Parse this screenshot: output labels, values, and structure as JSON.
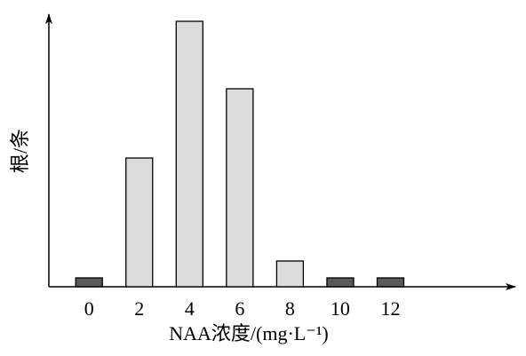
{
  "chart_data": {
    "type": "bar",
    "x_label": "NAA浓度/(mg·L⁻¹)",
    "y_label": "根/条",
    "x": [
      0,
      2,
      4,
      6,
      8,
      10,
      12
    ],
    "values": [
      10,
      145,
      299,
      223,
      29,
      10,
      10
    ],
    "colors": [
      "#5a5a5a",
      "#dcdcdc",
      "#dcdcdc",
      "#dcdcdc",
      "#dcdcdc",
      "#5a5a5a",
      "#5a5a5a"
    ],
    "xlim": [
      -1.6,
      16.9
    ],
    "xticks": [
      0,
      2,
      4,
      6,
      8,
      10,
      12
    ],
    "ylim": [
      0,
      305
    ]
  }
}
